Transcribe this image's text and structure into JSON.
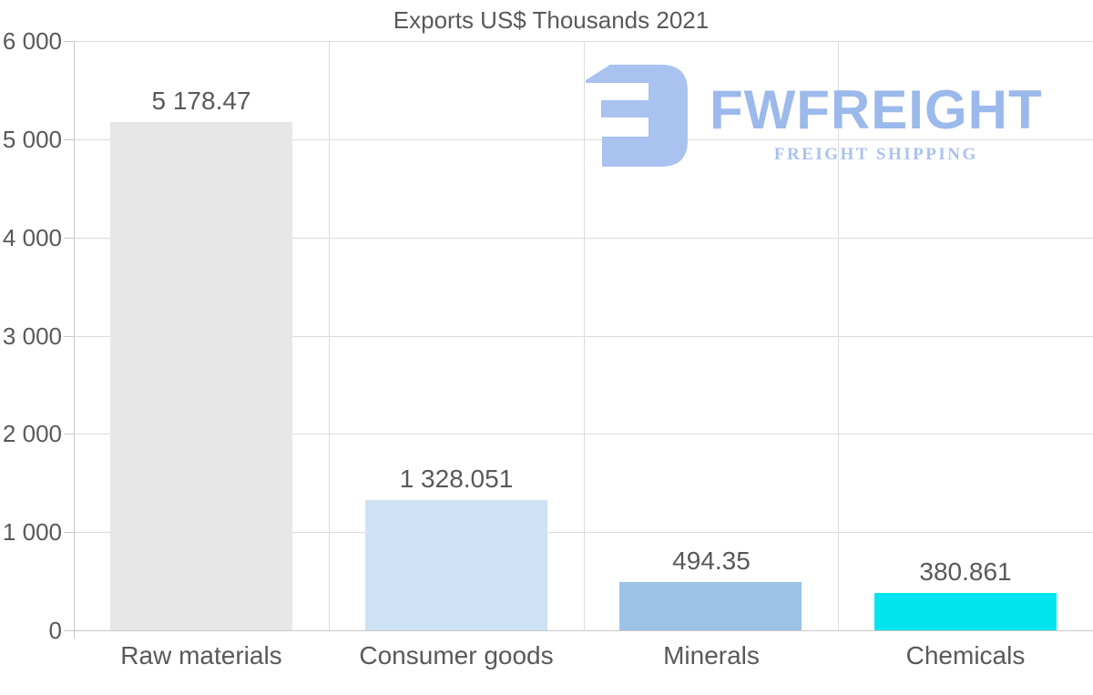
{
  "page": {
    "background": "#ffffff"
  },
  "logo": {
    "wordmark": "FWFREIGHT",
    "subtitle": "FREIGHT SHIPPING",
    "mark_color": "#a9c2ef",
    "wordmark_color": "#9cb9ec",
    "subtitle_color": "#a9c2ef"
  },
  "chart_data": {
    "type": "bar",
    "title": "Exports US$ Thousands 2021",
    "categories": [
      "Raw materials",
      "Consumer goods",
      "Minerals",
      "Chemicals"
    ],
    "values": [
      5178.47,
      1328.051,
      494.35,
      380.861
    ],
    "value_labels": [
      "5 178.47",
      "1 328.051",
      "494.35",
      "380.861"
    ],
    "bar_colors": [
      "#e7e7e7",
      "#cfe2f5",
      "#9cc2e6",
      "#00e5f0"
    ],
    "ylim": [
      0,
      6000
    ],
    "yticks": [
      0,
      1000,
      2000,
      3000,
      4000,
      5000,
      6000
    ],
    "ytick_labels": [
      "0",
      "1 000",
      "2 000",
      "3 000",
      "4 000",
      "5 000",
      "6 000"
    ],
    "xlabel": "",
    "ylabel": "",
    "grid": true,
    "legend": false,
    "text_color": "#595959",
    "grid_color": "#dcdcdc",
    "axis_color": "#c9c9c9"
  }
}
